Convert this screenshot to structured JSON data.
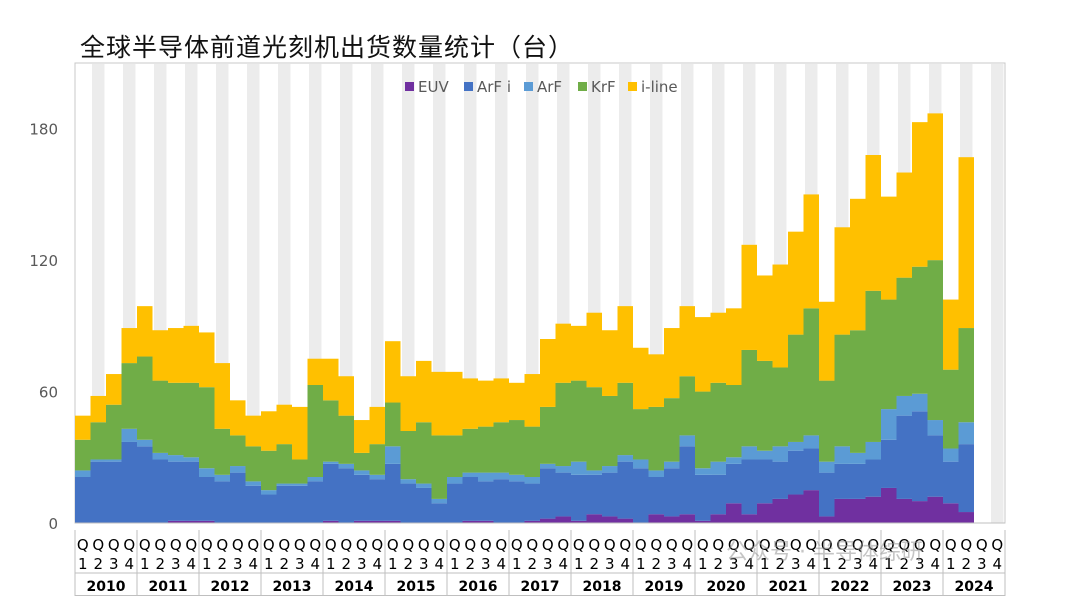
{
  "chart_data": {
    "type": "bar",
    "stacked": true,
    "title": "全球半导体前道光刻机出货数量统计（台）",
    "xlabel": "",
    "ylabel": "",
    "ylim": [
      0,
      210
    ],
    "yticks": [
      0,
      60,
      120,
      180
    ],
    "legend_position": "top-center",
    "grid": false,
    "quarter_labels": [
      "Q1",
      "Q2",
      "Q3",
      "Q4"
    ],
    "years": [
      "2010",
      "2011",
      "2012",
      "2013",
      "2014",
      "2015",
      "2016",
      "2017",
      "2018",
      "2019",
      "2020",
      "2021",
      "2022",
      "2023",
      "2024"
    ],
    "categories": [
      "2010 Q1",
      "2010 Q2",
      "2010 Q3",
      "2010 Q4",
      "2011 Q1",
      "2011 Q2",
      "2011 Q3",
      "2011 Q4",
      "2012 Q1",
      "2012 Q2",
      "2012 Q3",
      "2012 Q4",
      "2013 Q1",
      "2013 Q2",
      "2013 Q3",
      "2013 Q4",
      "2014 Q1",
      "2014 Q2",
      "2014 Q3",
      "2014 Q4",
      "2015 Q1",
      "2015 Q2",
      "2015 Q3",
      "2015 Q4",
      "2016 Q1",
      "2016 Q2",
      "2016 Q3",
      "2016 Q4",
      "2017 Q1",
      "2017 Q2",
      "2017 Q3",
      "2017 Q4",
      "2018 Q1",
      "2018 Q2",
      "2018 Q3",
      "2018 Q4",
      "2019 Q1",
      "2019 Q2",
      "2019 Q3",
      "2019 Q4",
      "2020 Q1",
      "2020 Q2",
      "2020 Q3",
      "2020 Q4",
      "2021 Q1",
      "2021 Q2",
      "2021 Q3",
      "2021 Q4",
      "2022 Q1",
      "2022 Q2",
      "2022 Q3",
      "2022 Q4",
      "2023 Q1",
      "2023 Q2",
      "2023 Q3",
      "2023 Q4",
      "2024 Q1",
      "2024 Q2",
      "2024 Q3",
      "2024 Q4"
    ],
    "series": [
      {
        "name": "EUV",
        "color": "#7030A0",
        "values": [
          0,
          0,
          0,
          0,
          0,
          0,
          1,
          1,
          1,
          0,
          0,
          0,
          0,
          0,
          0,
          0,
          1,
          0,
          1,
          1,
          1,
          0,
          0,
          0,
          0,
          1,
          1,
          0,
          0,
          1,
          2,
          3,
          1,
          4,
          3,
          2,
          0,
          4,
          3,
          4,
          1,
          4,
          9,
          4,
          9,
          11,
          13,
          15,
          3,
          11,
          11,
          12,
          16,
          11,
          10,
          12,
          9,
          5,
          0,
          0
        ]
      },
      {
        "name": "ArF i",
        "color": "#4472C4",
        "values": [
          21,
          28,
          28,
          37,
          35,
          29,
          27,
          27,
          20,
          19,
          23,
          17,
          13,
          17,
          17,
          19,
          26,
          25,
          21,
          19,
          26,
          18,
          16,
          9,
          18,
          20,
          18,
          20,
          19,
          17,
          23,
          20,
          21,
          18,
          20,
          26,
          25,
          17,
          22,
          31,
          21,
          18,
          18,
          25,
          20,
          17,
          20,
          19,
          20,
          16,
          16,
          17,
          22,
          38,
          41,
          28,
          19,
          31,
          0,
          0
        ]
      },
      {
        "name": "ArF",
        "color": "#5B9BD5",
        "values": [
          3,
          1,
          1,
          6,
          3,
          3,
          3,
          2,
          4,
          3,
          3,
          2,
          2,
          1,
          1,
          2,
          1,
          2,
          2,
          2,
          8,
          2,
          2,
          2,
          3,
          2,
          4,
          3,
          3,
          3,
          2,
          3,
          6,
          2,
          3,
          3,
          4,
          3,
          3,
          5,
          3,
          6,
          3,
          6,
          4,
          7,
          4,
          6,
          5,
          8,
          5,
          8,
          14,
          9,
          8,
          7,
          6,
          10,
          0,
          0
        ]
      },
      {
        "name": "KrF",
        "color": "#70AD47",
        "values": [
          14,
          17,
          25,
          30,
          38,
          33,
          33,
          34,
          37,
          21,
          14,
          16,
          18,
          18,
          11,
          42,
          28,
          22,
          8,
          14,
          20,
          22,
          28,
          29,
          19,
          20,
          21,
          23,
          25,
          23,
          26,
          38,
          37,
          38,
          32,
          33,
          23,
          29,
          29,
          27,
          35,
          36,
          33,
          44,
          41,
          36,
          49,
          58,
          37,
          51,
          56,
          69,
          50,
          54,
          58,
          73,
          36,
          43,
          0,
          0
        ]
      },
      {
        "name": "i-line",
        "color": "#FFC000",
        "values": [
          11,
          12,
          14,
          16,
          23,
          23,
          25,
          26,
          25,
          30,
          16,
          14,
          18,
          18,
          24,
          12,
          19,
          18,
          15,
          17,
          28,
          25,
          28,
          29,
          29,
          23,
          21,
          20,
          17,
          24,
          31,
          27,
          25,
          34,
          30,
          35,
          28,
          24,
          32,
          32,
          34,
          32,
          35,
          48,
          39,
          47,
          47,
          52,
          36,
          49,
          60,
          62,
          47,
          48,
          66,
          67,
          32,
          78,
          0,
          0
        ]
      }
    ]
  }
}
